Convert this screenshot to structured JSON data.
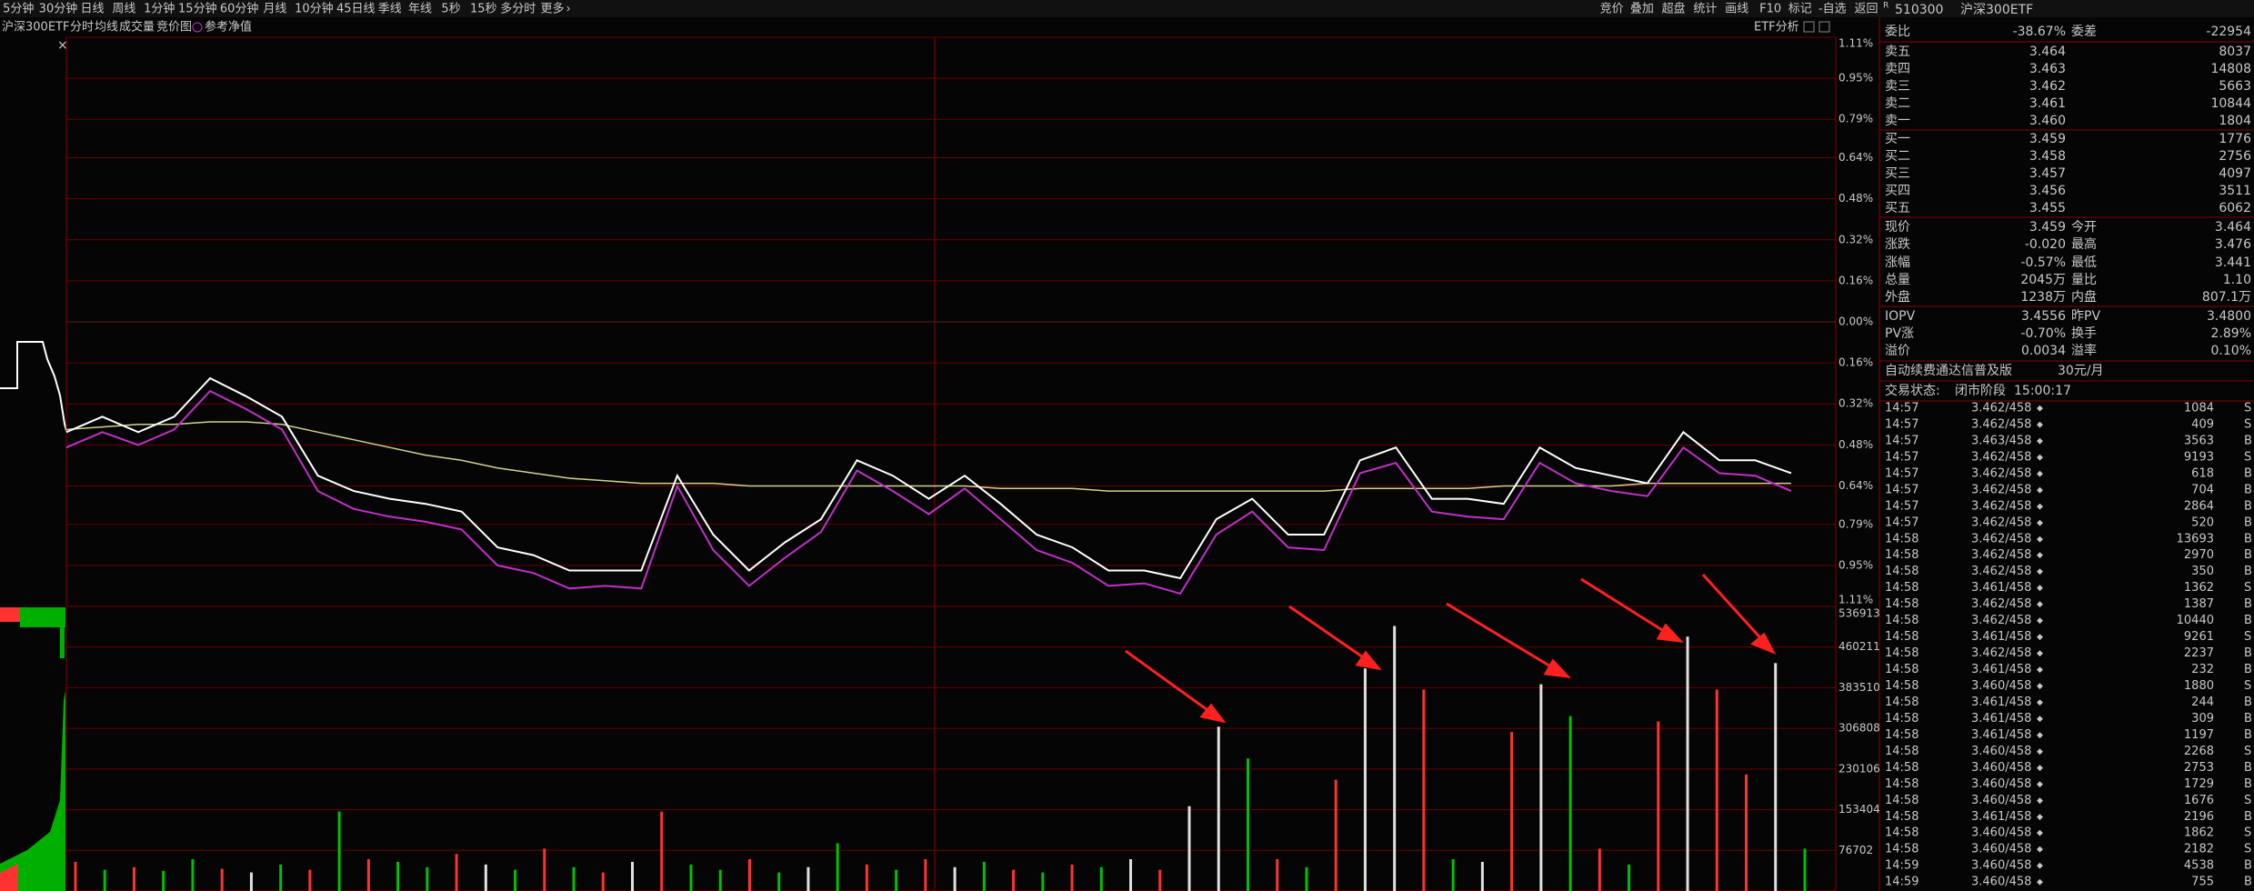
{
  "toolbar": {
    "periods": [
      "5分钟",
      "30分钟",
      "日线",
      "周线",
      "1分钟",
      "15分钟",
      "60分钟",
      "月线",
      "10分钟",
      "45日线",
      "季线",
      "年线",
      "5秒",
      "15秒",
      "多分时",
      "更多"
    ],
    "tools": [
      "竞价",
      "叠加",
      "超盘",
      "统计",
      "画线",
      "F10",
      "标记",
      "-自选",
      "返回"
    ]
  },
  "chart_header": {
    "name": "沪深300ETF",
    "auction": "竞价图",
    "etf": "ETF分析"
  },
  "chart_data": [
    {
      "type": "line",
      "ylim": [
        -1.11,
        1.11
      ],
      "yticks": [
        {
          "value": 1.11,
          "label": "1.11%"
        },
        {
          "value": 0.95,
          "label": "0.95%"
        },
        {
          "value": 0.79,
          "label": "0.79%"
        },
        {
          "value": 0.64,
          "label": "0.64%"
        },
        {
          "value": 0.48,
          "label": "0.48%"
        },
        {
          "value": 0.32,
          "label": "0.32%"
        },
        {
          "value": 0.16,
          "label": "0.16%"
        },
        {
          "value": 0,
          "label": "0.00%"
        },
        {
          "value": -0.16,
          "label": "0.16%"
        },
        {
          "value": -0.32,
          "label": "0.32%"
        },
        {
          "value": -0.48,
          "label": "0.48%"
        },
        {
          "value": -0.64,
          "label": "0.64%"
        },
        {
          "value": -0.79,
          "label": "0.79%"
        },
        {
          "value": -0.95,
          "label": "0.95%"
        },
        {
          "value": -1.11,
          "label": "1.11%"
        }
      ],
      "grid": true,
      "series": [
        {
          "name": "分时",
          "color": "#ffffff",
          "values": [
            -0.43,
            -0.37,
            -0.43,
            -0.37,
            -0.22,
            -0.29,
            -0.37,
            -0.6,
            -0.66,
            -0.69,
            -0.71,
            -0.74,
            -0.88,
            -0.91,
            -0.97,
            -0.97,
            -0.97,
            -0.6,
            -0.83,
            -0.97,
            -0.86,
            -0.77,
            -0.54,
            -0.6,
            -0.69,
            -0.6,
            -0.71,
            -0.83,
            -0.88,
            -0.97,
            -0.97,
            -1.0,
            -0.77,
            -0.69,
            -0.83,
            -0.83,
            -0.54,
            -0.49,
            -0.69,
            -0.69,
            -0.71,
            -0.49,
            -0.57,
            -0.6,
            -0.63,
            -0.43,
            -0.54,
            -0.54,
            -0.59
          ]
        },
        {
          "name": "均线",
          "color": "#d2d28c",
          "values": [
            -0.42,
            -0.41,
            -0.4,
            -0.4,
            -0.39,
            -0.39,
            -0.4,
            -0.43,
            -0.46,
            -0.49,
            -0.52,
            -0.54,
            -0.57,
            -0.59,
            -0.61,
            -0.62,
            -0.63,
            -0.63,
            -0.63,
            -0.64,
            -0.64,
            -0.64,
            -0.64,
            -0.64,
            -0.64,
            -0.64,
            -0.65,
            -0.65,
            -0.65,
            -0.66,
            -0.66,
            -0.66,
            -0.66,
            -0.66,
            -0.66,
            -0.66,
            -0.65,
            -0.65,
            -0.65,
            -0.65,
            -0.64,
            -0.64,
            -0.64,
            -0.64,
            -0.63,
            -0.63,
            -0.63,
            -0.63,
            -0.63
          ]
        },
        {
          "name": "参考净值",
          "color": "#c030c8",
          "values": [
            -0.49,
            -0.43,
            -0.48,
            -0.42,
            -0.27,
            -0.34,
            -0.42,
            -0.66,
            -0.73,
            -0.76,
            -0.78,
            -0.81,
            -0.95,
            -0.98,
            -1.04,
            -1.03,
            -1.04,
            -0.64,
            -0.89,
            -1.03,
            -0.92,
            -0.82,
            -0.58,
            -0.66,
            -0.75,
            -0.65,
            -0.77,
            -0.89,
            -0.94,
            -1.03,
            -1.02,
            -1.06,
            -0.83,
            -0.74,
            -0.88,
            -0.89,
            -0.59,
            -0.55,
            -0.74,
            -0.76,
            -0.77,
            -0.55,
            -0.63,
            -0.66,
            -0.68,
            -0.49,
            -0.59,
            -0.6,
            -0.66
          ]
        }
      ]
    },
    {
      "type": "bar",
      "title": "成交量",
      "ylim": [
        0,
        536913
      ],
      "yticks": [
        76702,
        153404,
        230106,
        306808,
        383510,
        460211,
        536913
      ],
      "grid": true,
      "values": [
        55000,
        40000,
        45000,
        38000,
        60000,
        42000,
        35000,
        50000,
        40000,
        150000,
        60000,
        55000,
        45000,
        70000,
        50000,
        40000,
        80000,
        45000,
        35000,
        55000,
        150000,
        50000,
        40000,
        60000,
        35000,
        45000,
        90000,
        50000,
        40000,
        60000,
        45000,
        55000,
        40000,
        35000,
        50000,
        45000,
        60000,
        40000,
        160000,
        310000,
        250000,
        60000,
        45000,
        210000,
        420000,
        500000,
        380000,
        60000,
        55000,
        300000,
        390000,
        330000,
        80000,
        50000,
        320000,
        480000,
        380000,
        220000,
        430000,
        80000
      ],
      "bar_colors": [
        "#ff3232",
        "#00c000",
        "#ff3232",
        "#00c000",
        "#00c000",
        "#ff3232",
        "#e0e0e0",
        "#00c000",
        "#ff3232",
        "#00c000",
        "#ff3232",
        "#00c000",
        "#00c000",
        "#ff3232",
        "#e0e0e0",
        "#00c000",
        "#ff3232",
        "#00c000",
        "#ff3232",
        "#e0e0e0",
        "#ff3232",
        "#00c000",
        "#00c000",
        "#ff3232",
        "#00c000",
        "#e0e0e0",
        "#00c000",
        "#ff3232",
        "#00c000",
        "#ff3232",
        "#e0e0e0",
        "#00c000",
        "#ff3232",
        "#00c000",
        "#ff3232",
        "#00c000",
        "#e0e0e0",
        "#ff3232",
        "#e0e0e0",
        "#e0e0e0",
        "#00c000",
        "#ff3232",
        "#00c000",
        "#ff3232",
        "#e0e0e0",
        "#e0e0e0",
        "#ff3232",
        "#00c000",
        "#e0e0e0",
        "#ff3232",
        "#e0e0e0",
        "#00c000",
        "#ff3232",
        "#00c000",
        "#ff3232",
        "#e0e0e0",
        "#ff3232",
        "#ff3232",
        "#e0e0e0",
        "#00c000"
      ]
    }
  ],
  "quote": {
    "tag": "R",
    "code": "510300",
    "name": "沪深300ETF",
    "weibi": [
      "委比",
      "-38.67%",
      "委差",
      "-22954"
    ],
    "sells": [
      [
        "卖五",
        "3.464",
        "8037"
      ],
      [
        "卖四",
        "3.463",
        "14808"
      ],
      [
        "卖三",
        "3.462",
        "5663"
      ],
      [
        "卖二",
        "3.461",
        "10844"
      ],
      [
        "卖一",
        "3.460",
        "1804"
      ]
    ],
    "buys": [
      [
        "买一",
        "3.459",
        "1776"
      ],
      [
        "买二",
        "3.458",
        "2756"
      ],
      [
        "买三",
        "3.457",
        "4097"
      ],
      [
        "买四",
        "3.456",
        "3511"
      ],
      [
        "买五",
        "3.455",
        "6062"
      ]
    ],
    "stats": [
      [
        "现价",
        "3.459",
        "今开",
        "3.464"
      ],
      [
        "涨跌",
        "-0.020",
        "最高",
        "3.476"
      ],
      [
        "涨幅",
        "-0.57%",
        "最低",
        "3.441"
      ],
      [
        "总量",
        "2045万",
        "量比",
        "1.10"
      ],
      [
        "外盘",
        "1238万",
        "内盘",
        "807.1万"
      ]
    ],
    "iopv": [
      [
        "IOPV",
        "3.4556",
        "昨PV",
        "3.4800"
      ],
      [
        "PV涨",
        "-0.70%",
        "换手",
        "2.89%"
      ],
      [
        "溢价",
        "0.0034",
        "溢率",
        "0.10%"
      ]
    ],
    "ad": [
      "自动续费通达信普及版",
      "30元/月"
    ],
    "status": [
      "交易状态:",
      "闭市阶段",
      "15:00:17"
    ],
    "ticks": [
      [
        "14:57",
        "3.462/458",
        "1084",
        "S"
      ],
      [
        "14:57",
        "3.462/458",
        "409",
        "S"
      ],
      [
        "14:57",
        "3.463/458",
        "3563",
        "B"
      ],
      [
        "14:57",
        "3.462/458",
        "9193",
        "S"
      ],
      [
        "14:57",
        "3.462/458",
        "618",
        "B"
      ],
      [
        "14:57",
        "3.462/458",
        "704",
        "B"
      ],
      [
        "14:57",
        "3.462/458",
        "2864",
        "B"
      ],
      [
        "14:57",
        "3.462/458",
        "520",
        "B"
      ],
      [
        "14:58",
        "3.462/458",
        "13693",
        "B"
      ],
      [
        "14:58",
        "3.462/458",
        "2970",
        "B"
      ],
      [
        "14:58",
        "3.462/458",
        "350",
        "B"
      ],
      [
        "14:58",
        "3.461/458",
        "1362",
        "S"
      ],
      [
        "14:58",
        "3.462/458",
        "1387",
        "B"
      ],
      [
        "14:58",
        "3.462/458",
        "10440",
        "B"
      ],
      [
        "14:58",
        "3.461/458",
        "9261",
        "S"
      ],
      [
        "14:58",
        "3.462/458",
        "2237",
        "B"
      ],
      [
        "14:58",
        "3.461/458",
        "232",
        "B"
      ],
      [
        "14:58",
        "3.460/458",
        "1880",
        "S"
      ],
      [
        "14:58",
        "3.461/458",
        "244",
        "B"
      ],
      [
        "14:58",
        "3.461/458",
        "309",
        "B"
      ],
      [
        "14:58",
        "3.461/458",
        "1197",
        "B"
      ],
      [
        "14:58",
        "3.460/458",
        "2268",
        "S"
      ],
      [
        "14:58",
        "3.460/458",
        "2753",
        "B"
      ],
      [
        "14:58",
        "3.460/458",
        "1729",
        "B"
      ],
      [
        "14:58",
        "3.460/458",
        "1676",
        "S"
      ],
      [
        "14:58",
        "3.461/458",
        "2196",
        "B"
      ],
      [
        "14:58",
        "3.460/458",
        "1862",
        "S"
      ],
      [
        "14:58",
        "3.460/458",
        "2182",
        "S"
      ],
      [
        "14:59",
        "3.460/458",
        "4538",
        "B"
      ],
      [
        "14:59",
        "3.460/458",
        "755",
        "B"
      ]
    ]
  }
}
